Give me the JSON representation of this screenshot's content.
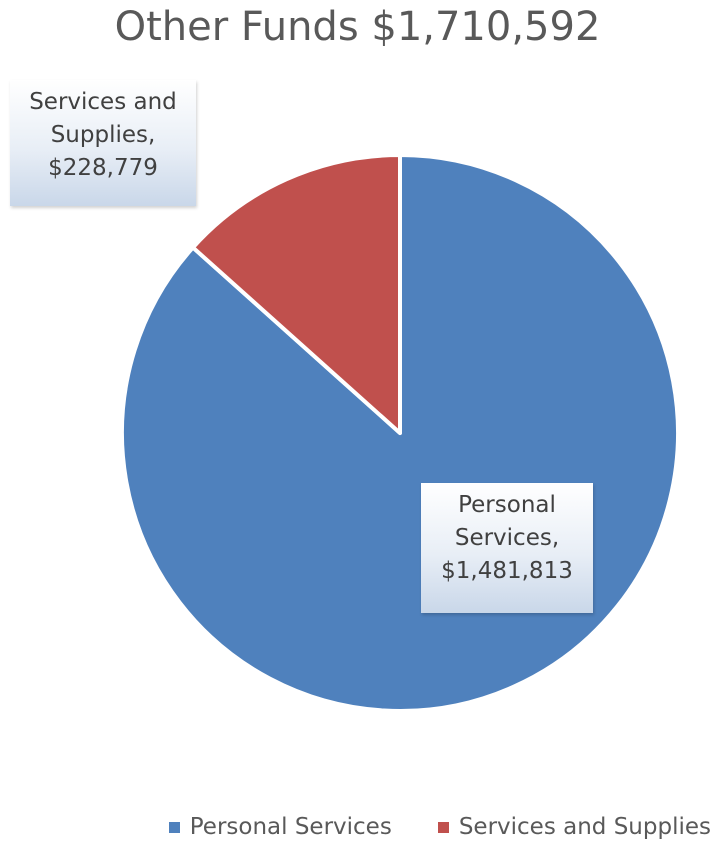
{
  "chart_data": {
    "type": "pie",
    "title": "Other Funds $1,710,592",
    "slices": [
      {
        "name": "Personal Services",
        "value": 1481813,
        "label_lines": [
          "Personal",
          "Services,",
          "$1,481,813"
        ],
        "color": "#4F81BD"
      },
      {
        "name": "Services and Supplies",
        "value": 228779,
        "label_lines": [
          "Services and",
          "Supplies,",
          "$228,779"
        ],
        "color": "#C0504D"
      }
    ],
    "legend": {
      "placement": "bottom",
      "entries": [
        "Personal Services",
        "Services and Supplies"
      ]
    }
  }
}
